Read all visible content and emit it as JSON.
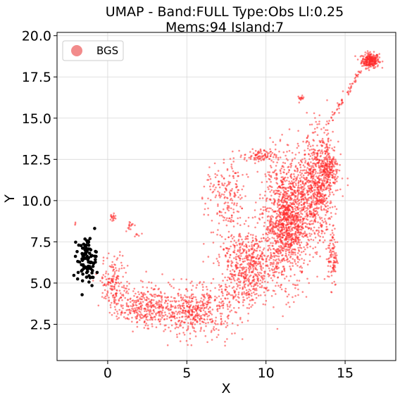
{
  "chart_data": {
    "type": "scatter",
    "title_line1": "UMAP  -  Band:FULL Type:Obs Ll:0.25",
    "title_line2": "Mems:94 Island:7",
    "xlabel": "X",
    "ylabel": "Y",
    "xlim": [
      -3.2,
      18.2
    ],
    "ylim": [
      0.3,
      20.2
    ],
    "xticks": [
      0,
      5,
      10,
      15
    ],
    "yticks": [
      2.5,
      5.0,
      7.5,
      10.0,
      12.5,
      15.0,
      17.5,
      20.0
    ],
    "grid": true,
    "legend": {
      "placement": "top-left",
      "entries": [
        {
          "label": "BGS",
          "color": "#f28b8b"
        }
      ]
    },
    "series": [
      {
        "name": "BGS",
        "color": "#ff2a2a",
        "opacity": 0.55,
        "point_count": 5000
      },
      {
        "color": "#000000",
        "opacity": 1.0,
        "point_count": 94
      }
    ],
    "point_density_regions": [
      {
        "shape": "ellipse",
        "cx": 16.6,
        "cy": 18.5,
        "rx": 0.55,
        "ry": 0.45,
        "n": 260
      },
      {
        "shape": "ellipse",
        "cx": 12.2,
        "cy": 16.2,
        "rx": 0.2,
        "ry": 0.15,
        "n": 15
      },
      {
        "shape": "line",
        "x1": 13.6,
        "y1": 14.2,
        "x2": 16.0,
        "y2": 17.9,
        "width": 0.25,
        "n": 70
      },
      {
        "shape": "ellipse",
        "cx": 11.3,
        "cy": 8.8,
        "rx": 1.4,
        "ry": 3.5,
        "n": 1300
      },
      {
        "shape": "ellipse",
        "cx": 13.2,
        "cy": 10.8,
        "rx": 1.1,
        "ry": 3.2,
        "n": 700
      },
      {
        "shape": "ellipse",
        "cx": 8.8,
        "cy": 6.0,
        "rx": 1.8,
        "ry": 2.3,
        "n": 600
      },
      {
        "shape": "ellipse",
        "cx": 5.5,
        "cy": 3.3,
        "rx": 2.6,
        "ry": 1.5,
        "n": 520
      },
      {
        "shape": "ellipse",
        "cx": 2.3,
        "cy": 3.6,
        "rx": 1.6,
        "ry": 1.2,
        "n": 300
      },
      {
        "shape": "ellipse",
        "cx": 0.4,
        "cy": 5.0,
        "rx": 0.9,
        "ry": 1.6,
        "n": 170
      },
      {
        "shape": "ellipse",
        "cx": 7.5,
        "cy": 10.2,
        "rx": 1.3,
        "ry": 2.3,
        "n": 190
      },
      {
        "shape": "ellipse",
        "cx": 9.6,
        "cy": 12.7,
        "rx": 1.0,
        "ry": 0.4,
        "n": 90
      },
      {
        "shape": "ellipse",
        "cx": 14.2,
        "cy": 6.6,
        "rx": 0.3,
        "ry": 1.8,
        "n": 100
      },
      {
        "shape": "ellipse",
        "cx": 14.0,
        "cy": 12.0,
        "rx": 0.6,
        "ry": 1.6,
        "n": 200
      },
      {
        "shape": "ellipse",
        "cx": 0.3,
        "cy": 9.0,
        "rx": 0.3,
        "ry": 0.3,
        "n": 18
      },
      {
        "shape": "ellipse",
        "cx": 1.4,
        "cy": 8.5,
        "rx": 0.3,
        "ry": 0.3,
        "n": 15
      },
      {
        "shape": "ellipse",
        "cx": -2.1,
        "cy": 8.6,
        "rx": 0.1,
        "ry": 0.1,
        "n": 3
      },
      {
        "shape": "ellipse",
        "cx": 1.9,
        "cy": 8.0,
        "rx": 0.2,
        "ry": 0.2,
        "n": 6
      },
      {
        "shape": "ellipse",
        "cx": -1.3,
        "cy": 6.4,
        "rx": 0.6,
        "ry": 1.4,
        "n": 94,
        "series": 1
      }
    ]
  }
}
